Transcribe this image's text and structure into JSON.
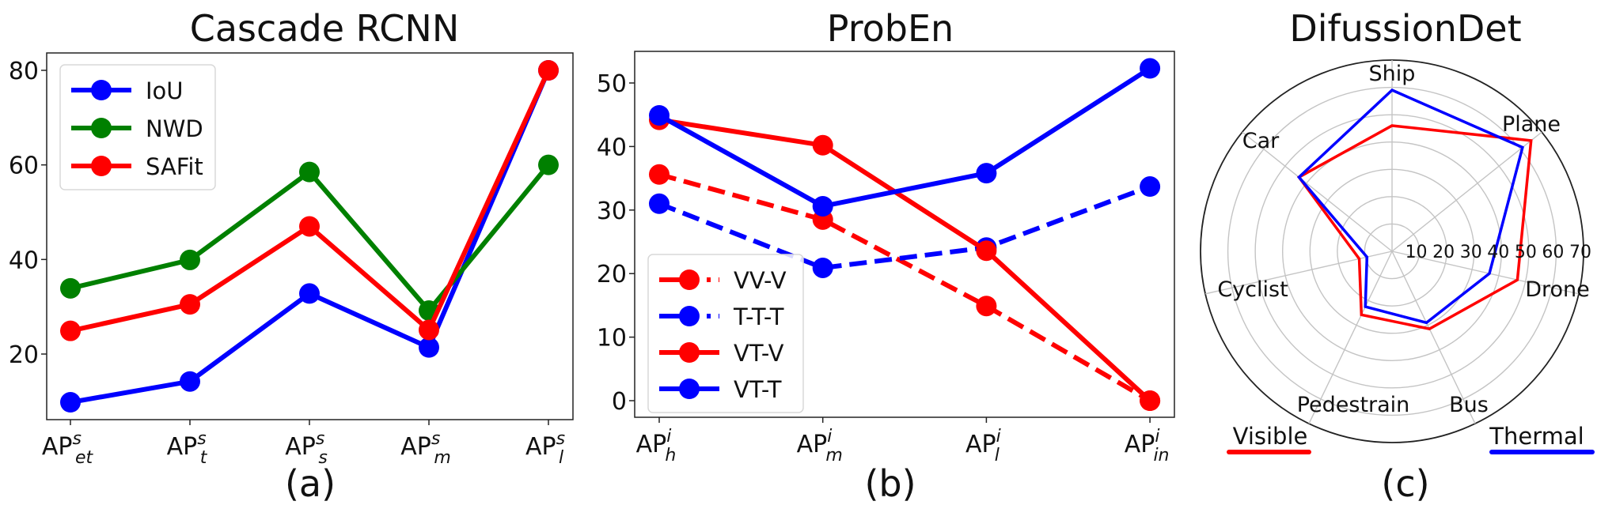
{
  "figure": {
    "captions": [
      "(a)",
      "(b)",
      "(c)"
    ]
  },
  "chart_data": [
    {
      "type": "line",
      "title": "Cascade RCNN",
      "caption": "(a)",
      "xlabel": "",
      "ylabel": "",
      "categories": [
        {
          "base": "AP",
          "sup": "s",
          "sub": "et"
        },
        {
          "base": "AP",
          "sup": "s",
          "sub": "t"
        },
        {
          "base": "AP",
          "sup": "s",
          "sub": "s"
        },
        {
          "base": "AP",
          "sup": "s",
          "sub": "m"
        },
        {
          "base": "AP",
          "sup": "s",
          "sub": "l"
        }
      ],
      "ylim": [
        7,
        84
      ],
      "yticks": [
        20,
        40,
        60,
        80
      ],
      "grid": false,
      "legend_position": "top-left",
      "series": [
        {
          "name": "IoU",
          "color": "#0000ff",
          "linestyle": "solid",
          "marker": "circle",
          "values": [
            9.8,
            14.2,
            32.8,
            21.4,
            80.0
          ]
        },
        {
          "name": "NWD",
          "color": "#008000",
          "linestyle": "solid",
          "marker": "circle",
          "values": [
            33.9,
            39.9,
            58.5,
            29.2,
            60.0
          ]
        },
        {
          "name": "SAFit",
          "color": "#ff0000",
          "linestyle": "solid",
          "marker": "circle",
          "values": [
            24.9,
            30.5,
            47.0,
            25.1,
            80.0
          ]
        }
      ]
    },
    {
      "type": "line",
      "title": "ProbEn",
      "caption": "(b)",
      "xlabel": "",
      "ylabel": "",
      "categories": [
        {
          "base": "AP",
          "sup": "i",
          "sub": "h"
        },
        {
          "base": "AP",
          "sup": "i",
          "sub": "m"
        },
        {
          "base": "AP",
          "sup": "i",
          "sub": "l"
        },
        {
          "base": "AP",
          "sup": "i",
          "sub": "in"
        }
      ],
      "ylim": [
        -2.6,
        55
      ],
      "yticks": [
        0,
        10,
        20,
        30,
        40,
        50
      ],
      "grid": false,
      "legend_position": "lower-left",
      "series": [
        {
          "name": "VV-V",
          "color": "#ff0000",
          "linestyle": "dashed",
          "marker": "circle",
          "values": [
            35.6,
            28.5,
            14.9,
            0.0
          ]
        },
        {
          "name": "T-T-T",
          "color": "#0000ff",
          "linestyle": "dashed",
          "marker": "circle",
          "values": [
            31.0,
            20.9,
            24.1,
            33.7
          ]
        },
        {
          "name": "VT-V",
          "color": "#ff0000",
          "linestyle": "solid",
          "marker": "circle",
          "values": [
            44.2,
            40.2,
            23.6,
            0.0
          ]
        },
        {
          "name": "VT-T",
          "color": "#0000ff",
          "linestyle": "solid",
          "marker": "circle",
          "values": [
            44.9,
            30.6,
            35.8,
            52.3
          ]
        }
      ]
    },
    {
      "type": "radar",
      "title": "DifussionDet",
      "caption": "(c)",
      "categories": [
        "Ship",
        "Plane",
        "Drone",
        "Bus",
        "Pedestrain",
        "Cyclist",
        "Car"
      ],
      "rlim": [
        0,
        70
      ],
      "rticks": [
        10,
        20,
        30,
        40,
        50,
        60,
        70
      ],
      "grid": true,
      "legend_position": "bottom",
      "series": [
        {
          "name": "Visible",
          "color": "#ff0000",
          "values": [
            46,
            65,
            47,
            31.5,
            25.8,
            12.3,
            43.5
          ]
        },
        {
          "name": "Thermal",
          "color": "#0000ff",
          "values": [
            59,
            61,
            36.5,
            29,
            22.5,
            9.4,
            43.5
          ]
        }
      ]
    }
  ]
}
